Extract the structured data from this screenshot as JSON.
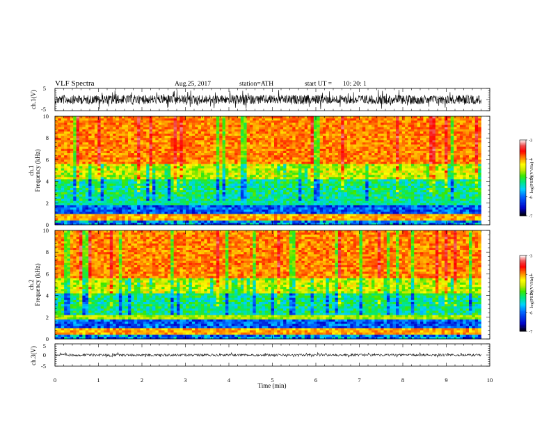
{
  "header": {
    "title": "VLF Spectra",
    "date": "Aug.25, 2017",
    "station": "station=ATH",
    "start_ut_label": "start UT =",
    "start_ut_value": "10: 20: 1"
  },
  "chart_data": [
    {
      "type": "line",
      "name": "ch1-waveform",
      "ylabel": "ch.1(V)",
      "ylim": [
        -5,
        5
      ],
      "yticks": [
        "5",
        "-5"
      ],
      "xlim": [
        0,
        10
      ],
      "x_range_data": [
        0,
        9.8
      ],
      "description_values": {
        "center": 0,
        "typical_amplitude": 2.5
      }
    },
    {
      "type": "heatmap",
      "name": "ch1-spectrogram",
      "ylabel_line1": "ch.1",
      "ylabel_line2": "Frequency (kHz)",
      "ylim": [
        0,
        10
      ],
      "yticks": [
        "0",
        "2",
        "4",
        "6",
        "8",
        "10"
      ],
      "xlim": [
        0,
        10
      ],
      "x_range_data": [
        0,
        9.8
      ],
      "colorbar": {
        "label": "log(PSD)(V²/Hz)",
        "ticks": [
          "-3",
          "-4",
          "-5",
          "-6",
          "-7"
        ],
        "range": [
          -7,
          -3
        ]
      }
    },
    {
      "type": "heatmap",
      "name": "ch2-spectrogram",
      "ylabel_line1": "ch.2",
      "ylabel_line2": "Frequency (kHz)",
      "ylim": [
        0,
        10
      ],
      "yticks": [
        "0",
        "2",
        "4",
        "6",
        "8",
        "10"
      ],
      "xlim": [
        0,
        10
      ],
      "x_range_data": [
        0,
        9.8
      ],
      "colorbar": {
        "label": "log(PSD)(V²/Hz)",
        "ticks": [
          "-3",
          "-4",
          "-5",
          "-6",
          "-7"
        ],
        "range": [
          -7,
          -3
        ]
      }
    },
    {
      "type": "line",
      "name": "ch3-waveform",
      "ylabel": "ch.3(V)",
      "ylim": [
        -5,
        5
      ],
      "yticks": [
        "5",
        "0",
        "-5"
      ],
      "xlim": [
        0,
        10
      ],
      "x_range_data": [
        0,
        9.8
      ],
      "description_values": {
        "center": 0,
        "typical_amplitude": 0.2
      }
    }
  ],
  "xaxis": {
    "label": "Time (min)",
    "ticks": [
      "0",
      "1",
      "2",
      "3",
      "4",
      "5",
      "6",
      "7",
      "8",
      "9",
      "10"
    ]
  },
  "colors": {
    "palette": [
      "#000000",
      "#0000c8",
      "#0064ff",
      "#00d0ff",
      "#00e878",
      "#3ce800",
      "#c8e800",
      "#ffff00",
      "#ff9600",
      "#ff0000",
      "#f04040",
      "#ffffff"
    ]
  }
}
